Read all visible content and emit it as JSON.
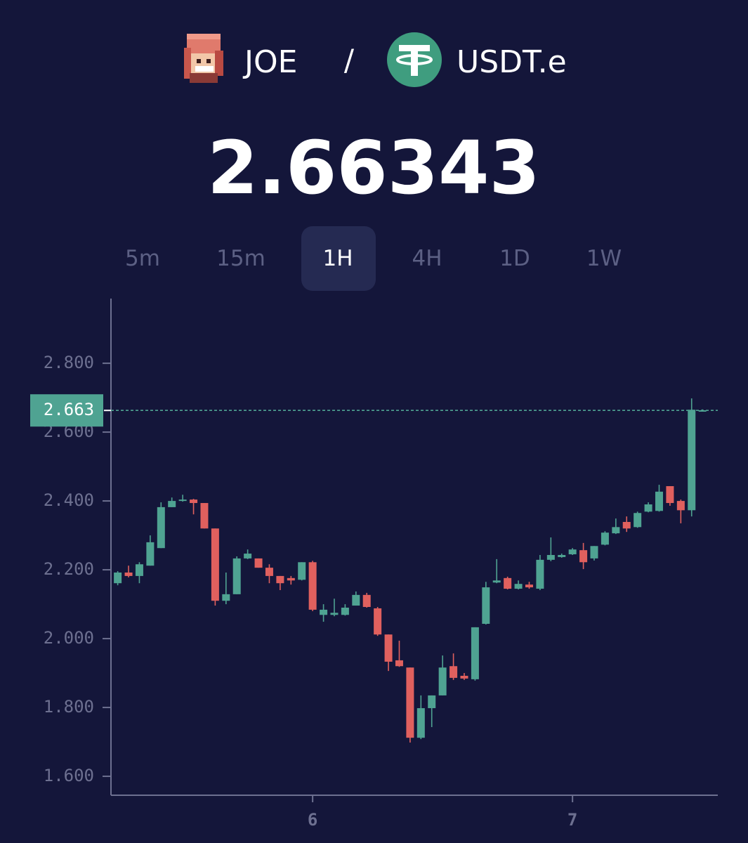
{
  "header": {
    "base": "JOE",
    "separator": "/",
    "quote": "USDT.e"
  },
  "price": 2.66343,
  "timeframes": [
    "5m",
    "15m",
    "1H",
    "4H",
    "1D",
    "1W"
  ],
  "active_timeframe": 2,
  "chart_data": {
    "type": "candlestick",
    "x": [
      5.25,
      5.2917,
      5.3333,
      5.375,
      5.4167,
      5.4583,
      5.5,
      5.5417,
      5.5833,
      5.625,
      5.6667,
      5.7083,
      5.75,
      5.7917,
      5.8333,
      5.875,
      5.9167,
      5.9583,
      6,
      6.0417,
      6.0833,
      6.125,
      6.1667,
      6.2083,
      6.25,
      6.2917,
      6.3333,
      6.375,
      6.4167,
      6.4583,
      6.5,
      6.5417,
      6.5833,
      6.625,
      6.6667,
      6.7083,
      6.75,
      6.7917,
      6.8333,
      6.875,
      6.9167,
      6.9583,
      7,
      7.0417,
      7.0833,
      7.125,
      7.1667,
      7.2083,
      7.25,
      7.2917,
      7.3333,
      7.375,
      7.4167,
      7.4583,
      7.5
    ],
    "open": [
      2.161,
      2.192,
      2.182,
      2.212,
      2.263,
      2.382,
      2.4,
      2.404,
      2.394,
      2.32,
      2.11,
      2.129,
      2.233,
      2.233,
      2.206,
      2.182,
      2.176,
      2.171,
      2.222,
      2.069,
      2.069,
      2.069,
      2.096,
      2.127,
      2.088,
      2.012,
      1.937,
      1.916,
      1.712,
      1.798,
      1.835,
      1.92,
      1.892,
      1.882,
      2.043,
      2.163,
      2.176,
      2.145,
      2.157,
      2.145,
      2.229,
      2.237,
      2.245,
      2.257,
      2.233,
      2.273,
      2.306,
      2.339,
      2.324,
      2.369,
      2.371,
      2.443,
      2.4,
      2.373,
      2.663
    ],
    "high": [
      2.196,
      2.212,
      2.222,
      2.3,
      2.396,
      2.41,
      2.418,
      2.406,
      2.394,
      2.32,
      2.192,
      2.239,
      2.259,
      2.233,
      2.216,
      2.182,
      2.182,
      2.222,
      2.226,
      2.1,
      2.116,
      2.1,
      2.137,
      2.133,
      2.092,
      2.012,
      1.994,
      1.916,
      1.835,
      1.835,
      1.951,
      1.957,
      1.9,
      2.033,
      2.165,
      2.231,
      2.18,
      2.169,
      2.165,
      2.243,
      2.294,
      2.247,
      2.263,
      2.278,
      2.269,
      2.312,
      2.349,
      2.355,
      2.369,
      2.396,
      2.447,
      2.443,
      2.404,
      2.698,
      2.666
    ],
    "low": [
      2.155,
      2.178,
      2.161,
      2.212,
      2.263,
      2.382,
      2.398,
      2.361,
      2.32,
      2.096,
      2.1,
      2.129,
      2.231,
      2.206,
      2.161,
      2.141,
      2.157,
      2.169,
      2.08,
      2.049,
      2.065,
      2.067,
      2.096,
      2.09,
      2.008,
      1.906,
      1.918,
      1.698,
      1.708,
      1.743,
      1.835,
      1.88,
      1.88,
      1.878,
      2.041,
      2.161,
      2.143,
      2.143,
      2.145,
      2.141,
      2.225,
      2.235,
      2.243,
      2.202,
      2.227,
      2.271,
      2.304,
      2.31,
      2.322,
      2.367,
      2.369,
      2.386,
      2.335,
      2.355,
      2.66
    ],
    "close": [
      2.192,
      2.182,
      2.216,
      2.28,
      2.382,
      2.4,
      2.404,
      2.394,
      2.32,
      2.11,
      2.129,
      2.233,
      2.247,
      2.206,
      2.182,
      2.161,
      2.169,
      2.222,
      2.084,
      2.084,
      2.075,
      2.09,
      2.127,
      2.092,
      2.012,
      1.933,
      1.92,
      1.712,
      1.798,
      1.835,
      1.916,
      1.886,
      1.884,
      2.033,
      2.149,
      2.169,
      2.145,
      2.159,
      2.149,
      2.229,
      2.243,
      2.243,
      2.259,
      2.222,
      2.269,
      2.308,
      2.324,
      2.32,
      2.365,
      2.39,
      2.427,
      2.394,
      2.373,
      2.665,
      2.66343
    ],
    "up_color": "#4fa392",
    "down_color": "#e0605e",
    "last_price": 2.663,
    "xlim": [
      5.224,
      7.559
    ],
    "xticks": [
      6,
      7
    ],
    "ylim": [
      1.545,
      2.988
    ],
    "yticks": [
      {
        "value": 1.6,
        "label": "1.600"
      },
      {
        "value": 1.8,
        "label": "1.800"
      },
      {
        "value": 2.0,
        "label": "2.000"
      },
      {
        "value": 2.2,
        "label": "2.200"
      },
      {
        "value": 2.4,
        "label": "2.400"
      },
      {
        "value": 2.6,
        "label": "2.600"
      },
      {
        "value": 2.8,
        "label": "2.800"
      }
    ]
  }
}
